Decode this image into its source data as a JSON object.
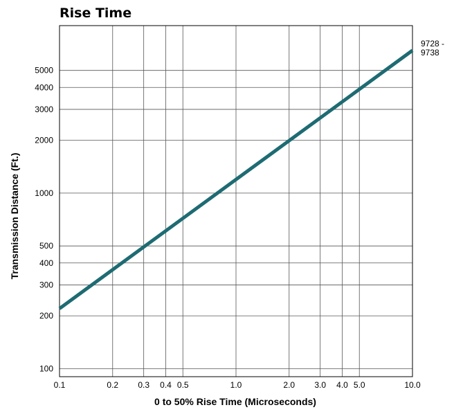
{
  "chart_data": {
    "type": "line",
    "title": "Rise Time",
    "xlabel": "0 to 50% Rise Time (Microseconds)",
    "ylabel": "Transmission Distance (Ft.)",
    "xscale": "log",
    "yscale": "log",
    "xlim": [
      0.1,
      10.0
    ],
    "ylim": [
      90,
      9000
    ],
    "grid": true,
    "x_grid": [
      0.1,
      0.2,
      0.3,
      0.4,
      0.5,
      1.0,
      2.0,
      3.0,
      4.0,
      5.0,
      10.0
    ],
    "y_grid": [
      100,
      200,
      300,
      400,
      500,
      1000,
      2000,
      3000,
      4000,
      5000
    ],
    "x_ticks": [
      {
        "value": 0.1,
        "label": "0.1"
      },
      {
        "value": 0.2,
        "label": "0.2"
      },
      {
        "value": 0.3,
        "label": "0.3"
      },
      {
        "value": 0.4,
        "label": "0.4"
      },
      {
        "value": 0.5,
        "label": "0.5"
      },
      {
        "value": 1.0,
        "label": "1.0"
      },
      {
        "value": 2.0,
        "label": "2.0"
      },
      {
        "value": 3.0,
        "label": "3.0"
      },
      {
        "value": 4.0,
        "label": "4.0"
      },
      {
        "value": 5.0,
        "label": "5.0"
      },
      {
        "value": 10.0,
        "label": "10.0"
      }
    ],
    "y_ticks": [
      {
        "value": 100,
        "label": "100"
      },
      {
        "value": 200,
        "label": "200"
      },
      {
        "value": 300,
        "label": "300"
      },
      {
        "value": 400,
        "label": "400"
      },
      {
        "value": 500,
        "label": "500"
      },
      {
        "value": 1000,
        "label": "1000"
      },
      {
        "value": 2000,
        "label": "2000"
      },
      {
        "value": 3000,
        "label": "3000"
      },
      {
        "value": 4000,
        "label": "4000"
      },
      {
        "value": 5000,
        "label": "5000"
      }
    ],
    "series": [
      {
        "name": "9728 - 9738",
        "name_lines": [
          "9728 -",
          "9738"
        ],
        "color": "#1e6b73",
        "x": [
          0.1,
          10.0
        ],
        "y": [
          220,
          6500
        ]
      }
    ]
  }
}
